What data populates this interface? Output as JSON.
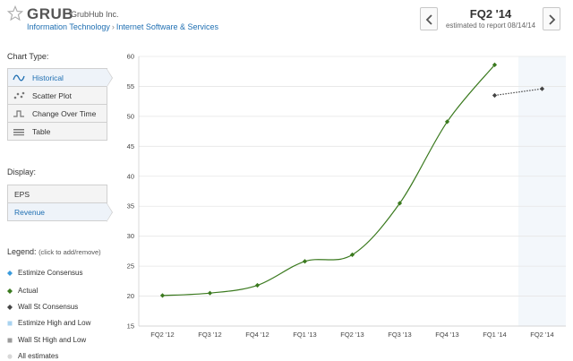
{
  "header": {
    "ticker": "GRUB",
    "company": "GrubHub Inc.",
    "sector": "Information Technology",
    "industry": "Internet Software & Services",
    "quarter": "FQ2 '14",
    "estimated": "estimated to report 08/14/14"
  },
  "chart_type": {
    "label": "Chart Type:",
    "options": [
      {
        "label": "Historical",
        "icon": "wave-icon"
      },
      {
        "label": "Scatter Plot",
        "icon": "scatter-icon"
      },
      {
        "label": "Change Over Time",
        "icon": "step-icon"
      },
      {
        "label": "Table",
        "icon": "table-icon"
      }
    ],
    "selected": "Historical"
  },
  "display": {
    "label": "Display:",
    "options": [
      {
        "label": "EPS"
      },
      {
        "label": "Revenue"
      }
    ],
    "selected": "Revenue"
  },
  "legend": {
    "title": "Legend:",
    "hint": "(click to add/remove)",
    "items": [
      {
        "label": "Estimize Consensus",
        "color": "#3a9bdc",
        "shape": "diamond"
      },
      {
        "label": "Actual",
        "color": "#3b7a1f",
        "shape": "diamond"
      },
      {
        "label": "Wall St Consensus",
        "color": "#444444",
        "shape": "diamond"
      },
      {
        "label": "Estimize High and Low",
        "color": "#a9d3f0",
        "shape": "square"
      },
      {
        "label": "Wall St High and Low",
        "color": "#9a9a9a",
        "shape": "square"
      },
      {
        "label": "All estimates",
        "color": "#d8d8d8",
        "shape": "circle"
      }
    ]
  },
  "chart_data": {
    "type": "line",
    "categories": [
      "FQ2 '12",
      "FQ3 '12",
      "FQ4 '12",
      "FQ1 '13",
      "FQ2 '13",
      "FQ3 '13",
      "FQ4 '13",
      "FQ1 '14",
      "FQ2 '14"
    ],
    "ylim": [
      15,
      60
    ],
    "yticks": [
      15,
      20,
      25,
      30,
      35,
      40,
      45,
      50,
      55,
      60
    ],
    "grid": true,
    "series": [
      {
        "name": "Actual",
        "color": "#3b7a1f",
        "values": [
          20.1,
          20.5,
          21.8,
          25.8,
          26.9,
          35.5,
          49.1,
          58.6,
          null
        ]
      },
      {
        "name": "Wall St Consensus",
        "color": "#444444",
        "style": "dotted",
        "values": [
          null,
          null,
          null,
          null,
          null,
          null,
          null,
          53.5,
          54.6
        ]
      }
    ],
    "highlight_category": "FQ2 '14"
  }
}
